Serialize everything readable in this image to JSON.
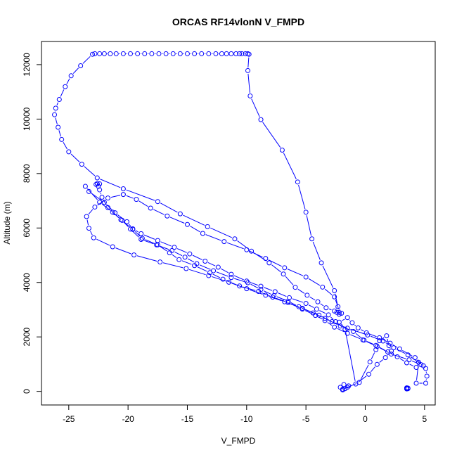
{
  "chart_data": {
    "type": "line",
    "title": "ORCAS RF14vlonN V_FMPD",
    "xlabel": "V_FMPD",
    "ylabel": "Altitude (m)",
    "xlim": [
      -27.3,
      5.9
    ],
    "ylim": [
      -500,
      12850
    ],
    "xticks": [
      -25,
      -20,
      -15,
      -10,
      -5,
      0,
      5
    ],
    "yticks": [
      0,
      2000,
      4000,
      6000,
      8000,
      10000,
      12000
    ],
    "xtick_labels": [
      "-25",
      "-20",
      "-15",
      "-10",
      "-5",
      "0",
      "5"
    ],
    "ytick_labels": [
      "0",
      "2000",
      "4000",
      "6000",
      "8000",
      "10000",
      "12000"
    ],
    "grid": false,
    "legend": "none",
    "series_color": "#0000ff",
    "marker": "open-circle",
    "line_style": "dashed-between-points",
    "series": [
      {
        "x": [
          3.5,
          3.5,
          3.5,
          3.6,
          3.5,
          3.6,
          3.5
        ],
        "y": [
          90,
          100,
          110,
          120,
          130,
          100,
          110
        ]
      },
      {
        "x": [
          -1.9,
          -1.7,
          -1.5,
          -1.4,
          -1.8,
          -2.1,
          -1.9,
          -0.5,
          0.4,
          0.9,
          1.2,
          1.8,
          2.0,
          2.2,
          1.7,
          1.0,
          0.3,
          -0.8,
          -1.7,
          -2.5,
          -3.1,
          -4.1,
          -5.0,
          -6.4,
          -7.6,
          -8.8,
          -10.0,
          -11.3,
          -12.4,
          -13.5,
          -14.8,
          -16.1,
          -17.5,
          -18.9,
          -19.6,
          -20.1,
          -21.1,
          -22.0,
          -23.3,
          -23.6,
          -22.4,
          -21.3,
          -20.5,
          -19.8,
          -18.9,
          -17.6,
          -16.3,
          -15.2,
          -14.2,
          -12.8,
          -11.3,
          -9.9,
          -8.8,
          -7.7,
          -6.5,
          -5.6,
          -4.4,
          -3.4,
          -2.1,
          -1.0,
          -0.1,
          0.9,
          1.9,
          2.7,
          3.5,
          4.3,
          4.5,
          4.3,
          5.1,
          5.2,
          5.1,
          4.7,
          3.7,
          2.2,
          1.0,
          -0.2,
          -1.5,
          -2.6,
          -3.4,
          -4.2,
          -5.3,
          -6.5,
          -7.8,
          -9.0,
          -10.6,
          -12.0,
          -13.1,
          -14.4,
          -15.7,
          -16.5,
          -17.5,
          -18.8,
          -19.6,
          -20.6,
          -21.7,
          -22.2,
          -22.4,
          -22.5,
          -22.6,
          -22.4,
          -22.7
        ],
        "y": [
          50,
          100,
          150,
          200,
          250,
          150,
          80,
          330,
          1080,
          1530,
          1860,
          2040,
          1680,
          1480,
          1240,
          990,
          630,
          270,
          2280,
          2560,
          2810,
          3020,
          3230,
          3440,
          3660,
          3860,
          4050,
          4300,
          4560,
          4780,
          5050,
          5290,
          5540,
          5790,
          5970,
          6230,
          6560,
          6940,
          7340,
          7530,
          6950,
          6580,
          6280,
          5960,
          5580,
          5380,
          5170,
          4930,
          4690,
          4430,
          4180,
          3990,
          3740,
          3520,
          3310,
          3110,
          2880,
          2680,
          2400,
          2200,
          1880,
          1690,
          1450,
          1270,
          1050,
          880,
          1070,
          300,
          300,
          560,
          840,
          980,
          1160,
          1370,
          1650,
          1890,
          2130,
          2360,
          2600,
          2790,
          3020,
          3260,
          3460,
          3670,
          3870,
          4120,
          4360,
          4620,
          4840,
          5090,
          5380,
          5620,
          5950,
          6300,
          6750,
          7130,
          7400,
          7530,
          7630,
          7620,
          7600
        ]
      },
      {
        "x": [
          -2.2,
          -1.5,
          -1.1,
          -0.6,
          0.1,
          1.2,
          2.1,
          2.9,
          4.2,
          4.9,
          3.6,
          2.4,
          1.5,
          0.2,
          -1.5,
          -2.8,
          -3.9,
          -5.3,
          -6.8,
          -8.4,
          -10.0,
          -11.5,
          -13.2,
          -15.1,
          -17.3,
          -19.5,
          -21.3,
          -22.9,
          -23.3,
          -23.5,
          -22.8,
          -21.7,
          -20.4,
          -19.3,
          -18.1,
          -16.7,
          -15.0,
          -13.7,
          -11.9,
          -10.0,
          -8.4,
          -6.8,
          -5.0,
          -3.6,
          -2.6,
          -2.3,
          -2.0
        ],
        "y": [
          2540,
          2710,
          2520,
          2330,
          2150,
          1970,
          1770,
          1560,
          1240,
          940,
          1340,
          1600,
          1850,
          2070,
          2320,
          2560,
          2800,
          3050,
          3290,
          3530,
          3770,
          4010,
          4250,
          4510,
          4750,
          5010,
          5310,
          5640,
          5990,
          6420,
          6770,
          7100,
          7230,
          7050,
          6730,
          6440,
          6130,
          5800,
          5500,
          5200,
          4880,
          4540,
          4200,
          3830,
          3470,
          3110,
          2870
        ]
      },
      {
        "x": [
          -2.2,
          -2.6,
          -3.7,
          -4.5,
          -5.0,
          -5.7,
          -7.0,
          -8.8,
          -9.7,
          -9.9,
          -9.8,
          -9.9,
          -10.1,
          -10.4,
          -10.6,
          -10.9,
          -11.3,
          -11.7,
          -12.1,
          -12.6,
          -13.2,
          -13.8,
          -14.4,
          -15.0,
          -15.6,
          -16.2,
          -16.8,
          -17.4,
          -18.0,
          -18.6,
          -19.2,
          -19.8,
          -20.4,
          -21.0,
          -21.5,
          -22.0,
          -22.4,
          -22.8,
          -23.0,
          -24.0,
          -24.8,
          -25.3,
          -25.8,
          -26.1,
          -26.2,
          -25.9,
          -25.6,
          -25.0,
          -23.9,
          -22.6,
          -20.4,
          -17.5,
          -15.6,
          -13.3,
          -11.0,
          -9.6,
          -8.1,
          -6.9,
          -5.9,
          -4.9,
          -4.0,
          -3.3,
          -2.6,
          -2.4,
          -2.2
        ],
        "y": [
          2900,
          3700,
          4720,
          5600,
          6580,
          7690,
          8860,
          9980,
          10850,
          11780,
          12380,
          12400,
          12400,
          12400,
          12400,
          12400,
          12400,
          12400,
          12400,
          12400,
          12400,
          12400,
          12400,
          12400,
          12400,
          12400,
          12400,
          12400,
          12400,
          12400,
          12400,
          12400,
          12400,
          12400,
          12400,
          12400,
          12400,
          12400,
          12380,
          11960,
          11590,
          11190,
          10720,
          10400,
          10160,
          9700,
          9250,
          8800,
          8340,
          7840,
          7440,
          6970,
          6520,
          6050,
          5600,
          5150,
          4720,
          4310,
          3820,
          3530,
          3290,
          3070,
          2950,
          2900,
          2830
        ]
      }
    ]
  }
}
